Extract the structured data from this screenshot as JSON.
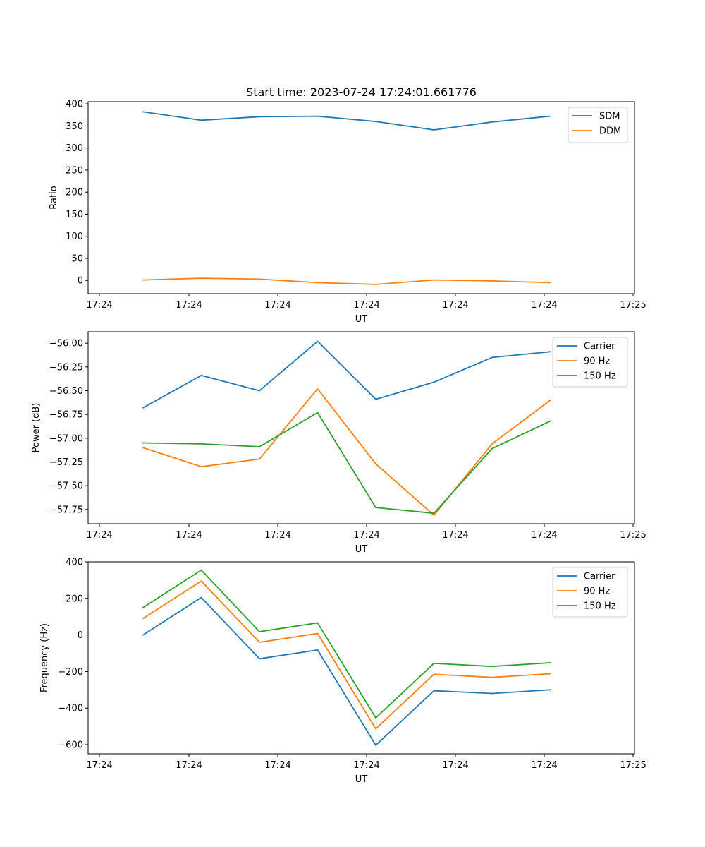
{
  "chart_data": [
    {
      "type": "line",
      "title": "Start time: 2023-07-24 17:24:01.661776",
      "xlabel": "UT",
      "ylabel": "Ratio",
      "x_tick_labels": [
        "17:24",
        "17:24",
        "17:24",
        "17:24",
        "17:24",
        "17:24",
        "17:25"
      ],
      "y_ticks": [
        0,
        50,
        100,
        150,
        200,
        250,
        300,
        350,
        400
      ],
      "y_tick_labels": [
        "0",
        "50",
        "100",
        "150",
        "200",
        "250",
        "300",
        "350",
        "400"
      ],
      "ylim": [
        -30,
        405
      ],
      "legend_position": "top-right",
      "series": [
        {
          "name": "SDM",
          "color": "#1f77b4",
          "values": [
            382,
            363,
            371,
            372,
            360,
            341,
            359,
            372
          ]
        },
        {
          "name": "DDM",
          "color": "#ff7f0e",
          "values": [
            1,
            5,
            3,
            -5,
            -9,
            1,
            -1,
            -5
          ]
        }
      ]
    },
    {
      "type": "line",
      "title": "",
      "xlabel": "UT",
      "ylabel": "Power (dB)",
      "x_tick_labels": [
        "17:24",
        "17:24",
        "17:24",
        "17:24",
        "17:24",
        "17:24",
        "17:25"
      ],
      "y_ticks": [
        -57.75,
        -57.5,
        -57.25,
        -57.0,
        -56.75,
        -56.5,
        -56.25,
        -56.0
      ],
      "y_tick_labels": [
        "−57.75",
        "−57.50",
        "−57.25",
        "−57.00",
        "−56.75",
        "−56.50",
        "−56.25",
        "−56.00"
      ],
      "ylim": [
        -57.9,
        -55.88
      ],
      "legend_position": "top-right",
      "series": [
        {
          "name": "Carrier",
          "color": "#1f77b4",
          "values": [
            -56.68,
            -56.34,
            -56.5,
            -55.98,
            -56.59,
            -56.41,
            -56.15,
            -56.09
          ]
        },
        {
          "name": "90 Hz",
          "color": "#ff7f0e",
          "values": [
            -57.1,
            -57.3,
            -57.22,
            -56.48,
            -57.27,
            -57.81,
            -57.06,
            -56.6
          ]
        },
        {
          "name": "150 Hz",
          "color": "#2ca02c",
          "values": [
            -57.05,
            -57.06,
            -57.09,
            -56.73,
            -57.73,
            -57.79,
            -57.11,
            -56.82
          ]
        }
      ]
    },
    {
      "type": "line",
      "title": "",
      "xlabel": "UT",
      "ylabel": "Frequency (Hz)",
      "x_tick_labels": [
        "17:24",
        "17:24",
        "17:24",
        "17:24",
        "17:24",
        "17:24",
        "17:25"
      ],
      "y_ticks": [
        -600,
        -400,
        -200,
        0,
        200,
        400
      ],
      "y_tick_labels": [
        "−600",
        "−400",
        "−200",
        "0",
        "200",
        "400"
      ],
      "ylim": [
        -650,
        400
      ],
      "legend_position": "top-right",
      "series": [
        {
          "name": "Carrier",
          "color": "#1f77b4",
          "values": [
            0,
            205,
            -130,
            -82,
            -603,
            -305,
            -320,
            -300
          ]
        },
        {
          "name": "90 Hz",
          "color": "#ff7f0e",
          "values": [
            90,
            295,
            -40,
            8,
            -513,
            -215,
            -232,
            -212
          ]
        },
        {
          "name": "150 Hz",
          "color": "#2ca02c",
          "values": [
            150,
            355,
            18,
            66,
            -453,
            -155,
            -172,
            -152
          ]
        }
      ]
    }
  ]
}
